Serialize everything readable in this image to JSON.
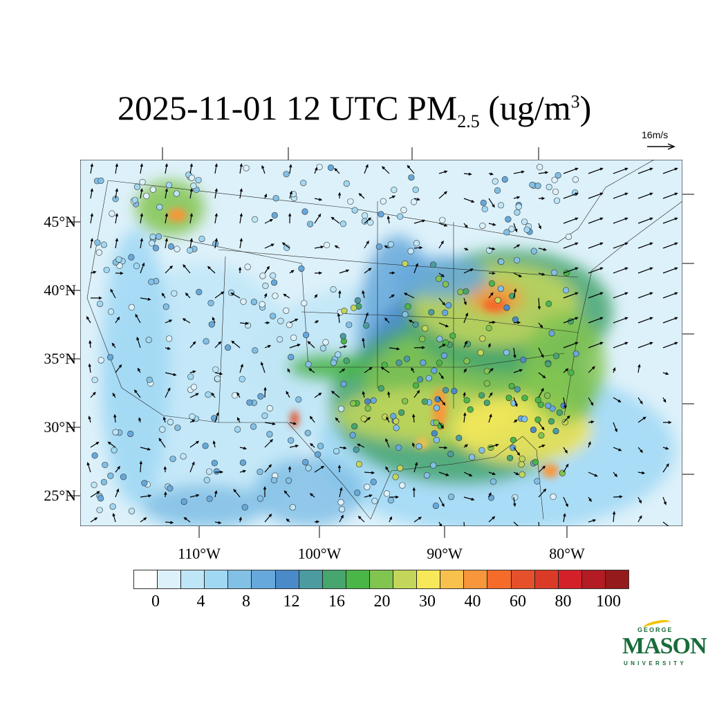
{
  "title": {
    "date": "2025-11-01 12 UTC PM",
    "sub": "2.5",
    "unit_pre": " (ug/m",
    "sup": "3",
    "unit_post": ")"
  },
  "vector_reference": {
    "label": "16m/s"
  },
  "axes": {
    "lat_labels": [
      "45°N",
      "40°N",
      "35°N",
      "30°N",
      "25°N"
    ],
    "lon_labels": [
      "110°W",
      "100°W",
      "90°W",
      "80°W"
    ]
  },
  "colorbar": {
    "colors": [
      "#ffffff",
      "#ddf1fa",
      "#bfe6f7",
      "#a0d8f4",
      "#82c0e6",
      "#66a8db",
      "#4a8ac8",
      "#4a9ca0",
      "#47a56e",
      "#4ab648",
      "#82c450",
      "#c3d65a",
      "#f7e85a",
      "#f8c04c",
      "#f7963a",
      "#f46b2a",
      "#e4512a",
      "#db3a27",
      "#d42129",
      "#b21c22",
      "#951a1c"
    ],
    "labels": [
      "0",
      "4",
      "8",
      "12",
      "16",
      "20",
      "30",
      "40",
      "60",
      "80",
      "100"
    ]
  },
  "logo": {
    "top": "GEORGE",
    "main": "MASON",
    "bottom": "UNIVERSITY"
  }
}
